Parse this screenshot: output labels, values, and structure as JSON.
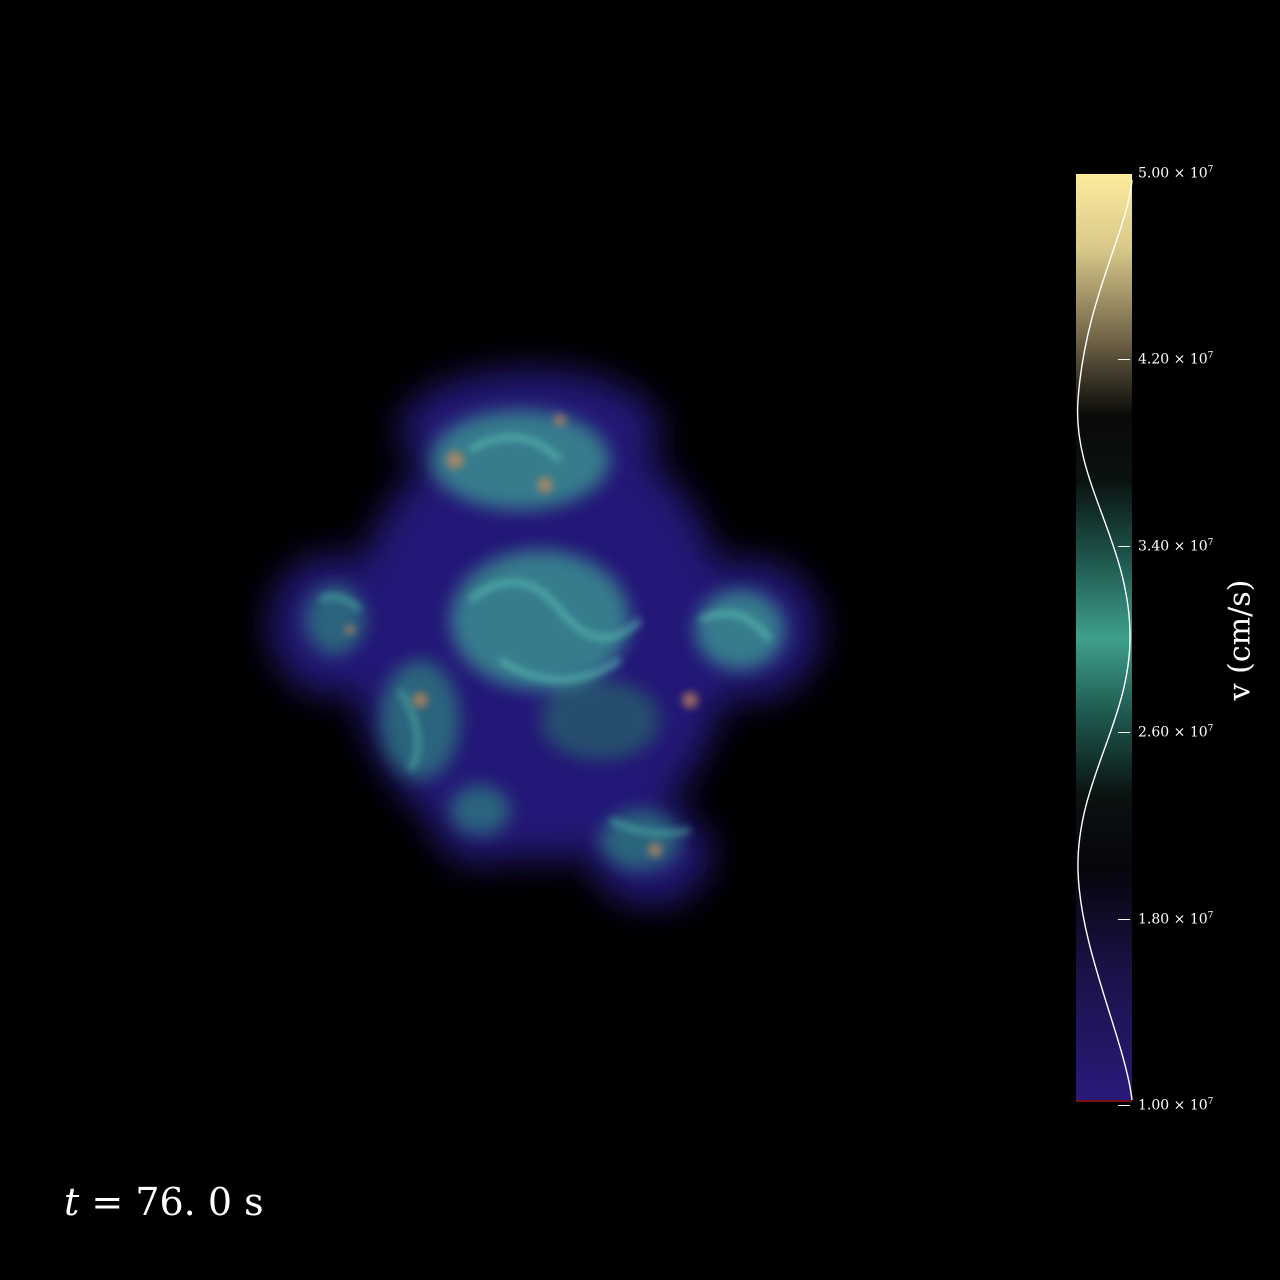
{
  "colorbar": {
    "label": "v  (cm/s)",
    "ticks": [
      {
        "mantissa": "5.00",
        "times": "×",
        "base": "10",
        "exp": "7"
      },
      {
        "mantissa": "4.20",
        "times": "×",
        "base": "10",
        "exp": "7"
      },
      {
        "mantissa": "3.40",
        "times": "×",
        "base": "10",
        "exp": "7"
      },
      {
        "mantissa": "2.60",
        "times": "×",
        "base": "10",
        "exp": "7"
      },
      {
        "mantissa": "1.80",
        "times": "×",
        "base": "10",
        "exp": "7"
      },
      {
        "mantissa": "1.00",
        "times": "×",
        "base": "10",
        "exp": "7"
      }
    ],
    "colors": {
      "top": "#fdeb9c",
      "mid_teal": "#3fa08c",
      "dark": "#050505",
      "bottom": "#2a1a7a"
    }
  },
  "time": {
    "symbol": "t",
    "equals": "=",
    "value": "76. 0",
    "unit": "s"
  }
}
